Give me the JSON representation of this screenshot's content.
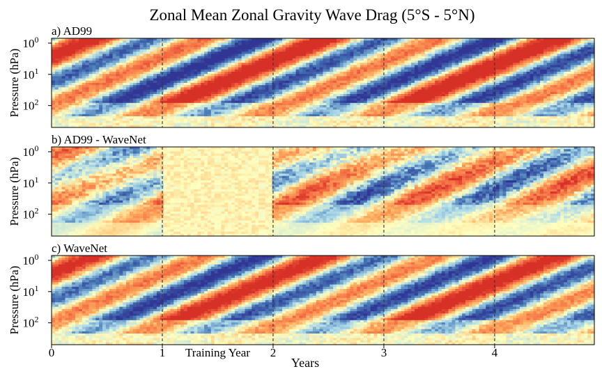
{
  "chart_data": {
    "type": "heatmap",
    "title": "Zonal Mean Zonal Gravity Wave Drag (5°S - 5°N)",
    "xlabel": "Years",
    "ylabel": "Pressure (hPa)",
    "annotation": "Training Year",
    "x_ticks": [
      {
        "value": 0,
        "label": "0"
      },
      {
        "value": 1,
        "label": "1"
      },
      {
        "value": 2,
        "label": "2"
      },
      {
        "value": 3,
        "label": "3"
      },
      {
        "value": 4,
        "label": "4"
      }
    ],
    "xlim": [
      0,
      4.9
    ],
    "y_scale": "log",
    "y_inverted": true,
    "ylim_hPa": [
      0.7,
      500
    ],
    "y_ticks": [
      {
        "value": 1,
        "base": "10",
        "exp": "0"
      },
      {
        "value": 10,
        "base": "10",
        "exp": "1"
      },
      {
        "value": 100,
        "base": "10",
        "exp": "2"
      }
    ],
    "year_boundaries_dashed": [
      1,
      2,
      3,
      4
    ],
    "colormap": "diverging red-yellow-blue",
    "colors": {
      "strong_negative": "#313695",
      "negative": "#4575b4",
      "weak_negative": "#abd9e9",
      "neutral": "#ffffbf",
      "weak_positive": "#fdae61",
      "positive": "#f46d43",
      "strong_positive": "#d73027"
    },
    "panels": [
      {
        "id": "a",
        "label": "a) AD99",
        "kind": "field"
      },
      {
        "id": "b",
        "label": "b) AD99 - WaveNet",
        "kind": "difference"
      },
      {
        "id": "c",
        "label": "c) WaveNet",
        "kind": "field"
      }
    ]
  }
}
